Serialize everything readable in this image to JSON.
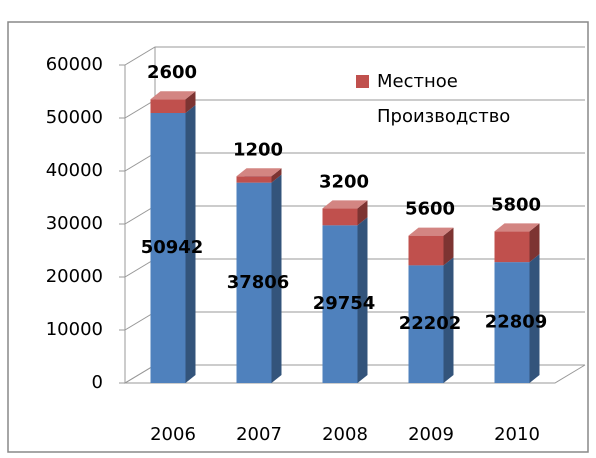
{
  "chart_data": {
    "type": "bar",
    "stacked": true,
    "categories": [
      "2006",
      "2007",
      "2008",
      "2009",
      "2010"
    ],
    "series": [
      {
        "color": "#4f81bd",
        "values": [
          50942,
          37806,
          29754,
          22202,
          22809
        ]
      },
      {
        "name": "Местное Производство",
        "color": "#c0504d",
        "values": [
          2600,
          1200,
          3200,
          5600,
          5800
        ]
      }
    ],
    "ylim": [
      0,
      60000
    ],
    "yticks": [
      0,
      10000,
      20000,
      30000,
      40000,
      50000,
      60000
    ],
    "grid": true,
    "legend": "top-right"
  }
}
